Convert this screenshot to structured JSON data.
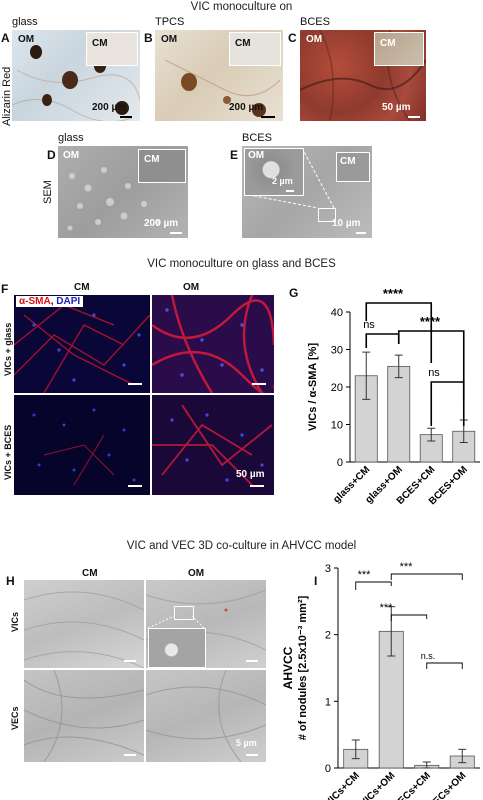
{
  "sections": {
    "s1": "VIC monoculture on",
    "s2": "VIC monoculture on glass and BCES",
    "s3": "VIC and VEC 3D co-culture in AHVCC model"
  },
  "panelA": {
    "letter": "A",
    "title": "glass",
    "om": "OM",
    "cm": "CM",
    "scale": "200 µm",
    "row": "Alizarin Red"
  },
  "panelB": {
    "letter": "B",
    "title": "TPCS",
    "om": "OM",
    "cm": "CM",
    "scale": "200 µm"
  },
  "panelC": {
    "letter": "C",
    "title": "BCES",
    "om": "OM",
    "cm": "CM",
    "scale": "50 µm"
  },
  "panelD": {
    "letter": "D",
    "title": "glass",
    "om": "OM",
    "cm": "CM",
    "scale": "200 µm",
    "row": "SEM"
  },
  "panelE": {
    "letter": "E",
    "title": "BCES",
    "om": "OM",
    "cm": "CM",
    "scale_in": "2 µm",
    "scale": "10 µm"
  },
  "panelF": {
    "letter": "F",
    "legend_red": "α-SMA",
    "legend_sep": ", ",
    "legend_blue": "DAPI",
    "col1": "CM",
    "col2": "OM",
    "row1": "VICs + glass",
    "row2": "VICs + BCES",
    "scale": "50 µm"
  },
  "panelG": {
    "letter": "G",
    "sig_top": "****",
    "sig_ns1": "ns",
    "sig_mid": "****",
    "sig_ns2": "ns"
  },
  "panelH": {
    "letter": "H",
    "col1": "CM",
    "col2": "OM",
    "row1": "VICs",
    "row2": "VECs",
    "scale": "5 µm"
  },
  "panelI": {
    "letter": "I",
    "sig1": "***",
    "sig2": "***",
    "sig3": "***",
    "sig4": "n.s."
  },
  "chart_data": [
    {
      "type": "bar",
      "panel": "G",
      "categories": [
        "glass+CM",
        "glass+OM",
        "BCES+CM",
        "BCES+OM"
      ],
      "values": [
        23,
        25.5,
        7.3,
        8.2
      ],
      "errors": [
        6.3,
        3,
        1.7,
        3
      ],
      "ylabel": "VICs / α-SMA [%]",
      "yticks": [
        0,
        10,
        20,
        30,
        40
      ],
      "ylim": [
        0,
        40
      ],
      "bar_color": "#d3d3d3"
    },
    {
      "type": "bar",
      "panel": "I",
      "categories": [
        "VICs+CM",
        "VICs+OM",
        "VECs+CM",
        "VECs+OM"
      ],
      "values": [
        0.28,
        2.05,
        0.04,
        0.18
      ],
      "errors": [
        0.14,
        0.37,
        0.05,
        0.1
      ],
      "ylabel_top": "AHVCC",
      "ylabel": "# of nodules [2.5x10⁻³ mm²]",
      "yticks": [
        0,
        1,
        2,
        3
      ],
      "ylim": [
        0,
        3
      ],
      "bar_color": "#d3d3d3"
    }
  ]
}
